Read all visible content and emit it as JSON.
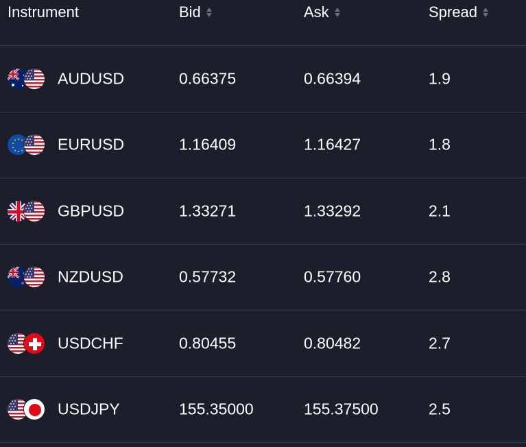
{
  "header": {
    "instrument": "Instrument",
    "bid": "Bid",
    "ask": "Ask",
    "spread": "Spread"
  },
  "rows": [
    {
      "symbol": "AUDUSD",
      "bid": "0.66375",
      "ask": "0.66394",
      "spread": "1.9",
      "flags": [
        "australia-flag-icon",
        "us-flag-icon"
      ]
    },
    {
      "symbol": "EURUSD",
      "bid": "1.16409",
      "ask": "1.16427",
      "spread": "1.8",
      "flags": [
        "eu-flag-icon",
        "us-flag-icon"
      ]
    },
    {
      "symbol": "GBPUSD",
      "bid": "1.33271",
      "ask": "1.33292",
      "spread": "2.1",
      "flags": [
        "uk-flag-icon",
        "us-flag-icon"
      ]
    },
    {
      "symbol": "NZDUSD",
      "bid": "0.57732",
      "ask": "0.57760",
      "spread": "2.8",
      "flags": [
        "new-zealand-flag-icon",
        "us-flag-icon"
      ]
    },
    {
      "symbol": "USDCHF",
      "bid": "0.80455",
      "ask": "0.80482",
      "spread": "2.7",
      "flags": [
        "us-flag-icon",
        "switzerland-flag-icon"
      ]
    },
    {
      "symbol": "USDJPY",
      "bid": "155.35000",
      "ask": "155.37500",
      "spread": "2.5",
      "flags": [
        "us-flag-icon",
        "japan-flag-icon"
      ]
    }
  ],
  "colors": {
    "background": "#1c1e2b",
    "divider": "#3a3d4d",
    "text": "#ffffff",
    "sort_icon": "#6b6e7c"
  }
}
